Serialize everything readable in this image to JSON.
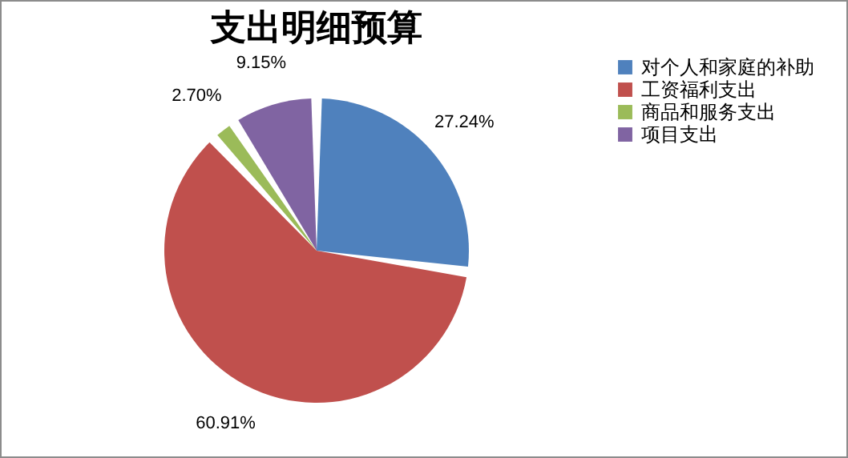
{
  "chart_data": {
    "type": "pie",
    "title": "支出明细预算",
    "categories": [
      "对个人和家庭的补助",
      "工资福利支出",
      "商品和服务支出",
      "项目支出"
    ],
    "values": [
      27.24,
      60.91,
      2.7,
      9.15
    ],
    "value_labels": [
      "27.24%",
      "60.91%",
      "2.70%",
      "9.15%"
    ],
    "colors": [
      "#4f81bd",
      "#c0504d",
      "#9bbb59",
      "#8064a2"
    ],
    "legend": "right"
  }
}
